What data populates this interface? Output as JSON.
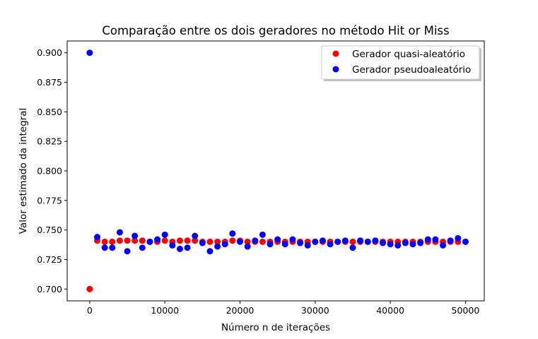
{
  "chart_data": {
    "type": "scatter",
    "title": "Comparação entre os dois geradores no método Hit or Miss",
    "xlabel": "Número n de iterações",
    "ylabel": "Valor estimado da integral",
    "xlim": [
      -3000,
      52500
    ],
    "ylim": [
      0.69,
      0.91
    ],
    "xticks": [
      0,
      10000,
      20000,
      30000,
      40000,
      50000
    ],
    "xtick_labels": [
      "0",
      "10000",
      "20000",
      "30000",
      "40000",
      "50000"
    ],
    "yticks": [
      0.7,
      0.725,
      0.75,
      0.775,
      0.8,
      0.825,
      0.85,
      0.875,
      0.9
    ],
    "ytick_labels": [
      "0.700",
      "0.725",
      "0.750",
      "0.775",
      "0.800",
      "0.825",
      "0.850",
      "0.875",
      "0.900"
    ],
    "grid": false,
    "legend_position": "top-right",
    "series": [
      {
        "name": "Gerador quasi-aleatório",
        "color": "#ff0000",
        "x": [
          0,
          1000,
          2000,
          3000,
          4000,
          5000,
          6000,
          7000,
          8000,
          9000,
          10000,
          11000,
          12000,
          13000,
          14000,
          15000,
          16000,
          17000,
          18000,
          19000,
          20000,
          21000,
          22000,
          23000,
          24000,
          25000,
          26000,
          27000,
          28000,
          29000,
          30000,
          31000,
          32000,
          33000,
          34000,
          35000,
          36000,
          37000,
          38000,
          39000,
          40000,
          41000,
          42000,
          43000,
          44000,
          45000,
          46000,
          47000,
          48000,
          49000,
          50000
        ],
        "y": [
          0.7,
          0.741,
          0.74,
          0.74,
          0.741,
          0.741,
          0.741,
          0.741,
          0.74,
          0.74,
          0.741,
          0.74,
          0.741,
          0.741,
          0.741,
          0.74,
          0.74,
          0.74,
          0.74,
          0.741,
          0.741,
          0.74,
          0.74,
          0.74,
          0.74,
          0.74,
          0.74,
          0.74,
          0.74,
          0.74,
          0.74,
          0.74,
          0.74,
          0.74,
          0.74,
          0.74,
          0.74,
          0.74,
          0.74,
          0.74,
          0.74,
          0.74,
          0.74,
          0.74,
          0.74,
          0.74,
          0.74,
          0.74,
          0.74,
          0.74,
          0.74
        ]
      },
      {
        "name": "Gerador pseudoaleatório",
        "color": "#0000ff",
        "x": [
          0,
          1000,
          2000,
          3000,
          4000,
          5000,
          6000,
          7000,
          8000,
          9000,
          10000,
          11000,
          12000,
          13000,
          14000,
          15000,
          16000,
          17000,
          18000,
          19000,
          20000,
          21000,
          22000,
          23000,
          24000,
          25000,
          26000,
          27000,
          28000,
          29000,
          30000,
          31000,
          32000,
          33000,
          34000,
          35000,
          36000,
          37000,
          38000,
          39000,
          40000,
          41000,
          42000,
          43000,
          44000,
          45000,
          46000,
          47000,
          48000,
          49000,
          50000
        ],
        "y": [
          0.9,
          0.744,
          0.735,
          0.735,
          0.748,
          0.732,
          0.745,
          0.735,
          0.74,
          0.742,
          0.746,
          0.737,
          0.734,
          0.735,
          0.745,
          0.739,
          0.732,
          0.736,
          0.738,
          0.747,
          0.74,
          0.736,
          0.741,
          0.746,
          0.738,
          0.742,
          0.738,
          0.742,
          0.739,
          0.737,
          0.74,
          0.741,
          0.738,
          0.74,
          0.741,
          0.735,
          0.741,
          0.74,
          0.741,
          0.739,
          0.738,
          0.737,
          0.739,
          0.738,
          0.739,
          0.742,
          0.742,
          0.737,
          0.741,
          0.743,
          0.74
        ]
      }
    ]
  }
}
